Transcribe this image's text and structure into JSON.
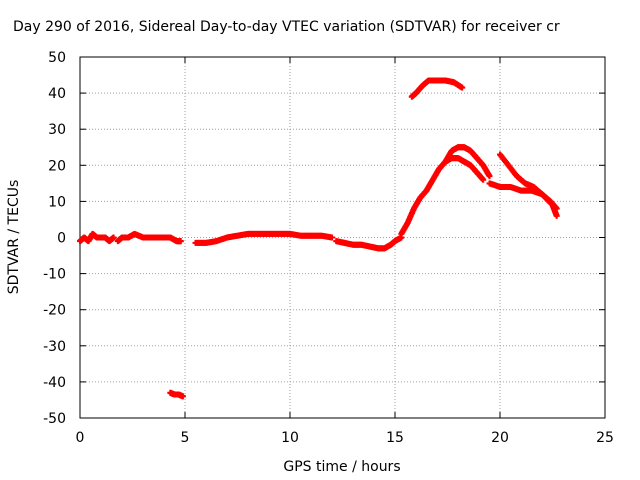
{
  "chart_data": {
    "type": "scatter",
    "title": "Day 290 of 2016, Sidereal Day-to-day VTEC variation (SDTVAR) for receiver cr",
    "xlabel": "GPS time / hours",
    "ylabel": "SDTVAR / TECUs",
    "xlim": [
      0,
      25
    ],
    "ylim": [
      -50,
      50
    ],
    "xticks": [
      "0",
      "5",
      "10",
      "15",
      "20",
      "25"
    ],
    "yticks": [
      "-50",
      "-40",
      "-30",
      "-20",
      "-10",
      "0",
      "10",
      "20",
      "30",
      "40",
      "50"
    ],
    "grid": true,
    "marker": "+",
    "color": "#ff0000",
    "series": [
      {
        "name": "segment-1",
        "x": [
          0.0,
          0.2,
          0.4,
          0.6,
          0.8,
          1.0,
          1.2,
          1.4,
          1.6
        ],
        "y": [
          -1,
          0,
          -1,
          1,
          0,
          0,
          0,
          -1,
          0
        ]
      },
      {
        "name": "segment-2",
        "x": [
          1.8,
          2.0,
          2.3,
          2.6,
          3.0,
          3.3,
          3.6,
          4.0,
          4.3,
          4.6,
          4.8
        ],
        "y": [
          -1,
          0,
          0,
          1,
          0,
          0,
          0,
          0,
          0,
          -1,
          -1
        ]
      },
      {
        "name": "segment-3",
        "x": [
          4.3,
          4.5,
          4.7,
          4.9
        ],
        "y": [
          -43,
          -43.5,
          -43.5,
          -44
        ]
      },
      {
        "name": "segment-4",
        "x": [
          5.5,
          6.0,
          6.5,
          7.0,
          7.5,
          8.0,
          8.5,
          9.0,
          9.5,
          10.0,
          10.5,
          11.0,
          11.5,
          12.0
        ],
        "y": [
          -1.5,
          -1.5,
          -1,
          0,
          0.5,
          1,
          1,
          1,
          1,
          1,
          0.5,
          0.5,
          0.5,
          0
        ]
      },
      {
        "name": "segment-5",
        "x": [
          12.2,
          12.6,
          13.0,
          13.4,
          13.8,
          14.2,
          14.5,
          14.8,
          15.0,
          15.3
        ],
        "y": [
          -1,
          -1.5,
          -2,
          -2,
          -2.5,
          -3,
          -3,
          -2,
          -1,
          0
        ]
      },
      {
        "name": "segment-6",
        "x": [
          15.3,
          15.6,
          15.9,
          16.2,
          16.5,
          16.8,
          17.1,
          17.4,
          17.7,
          18.0,
          18.3,
          18.6,
          18.9,
          19.2
        ],
        "y": [
          1,
          4,
          8,
          11,
          13,
          16,
          19,
          21,
          22,
          22,
          21,
          20,
          18,
          16
        ]
      },
      {
        "name": "segment-7",
        "x": [
          17.4,
          17.7,
          18.0,
          18.3,
          18.6,
          18.9,
          19.2,
          19.5
        ],
        "y": [
          21,
          24,
          25,
          25,
          24,
          22,
          20,
          17
        ]
      },
      {
        "name": "segment-8",
        "x": [
          15.8,
          16.0,
          16.3,
          16.6,
          17.0,
          17.4,
          17.8,
          18.2
        ],
        "y": [
          39,
          40,
          42,
          43.5,
          43.5,
          43.5,
          43,
          41.5
        ]
      },
      {
        "name": "segment-9",
        "x": [
          19.5,
          20.0,
          20.5,
          21.0,
          21.5,
          22.0,
          22.5,
          22.7
        ],
        "y": [
          15,
          14,
          14,
          13,
          13,
          12,
          9,
          6
        ]
      },
      {
        "name": "segment-10",
        "x": [
          20.0,
          20.4,
          20.8,
          21.2,
          21.6,
          22.0,
          22.4,
          22.7
        ],
        "y": [
          23,
          20,
          17,
          15,
          14,
          12,
          10,
          8
        ]
      }
    ]
  }
}
